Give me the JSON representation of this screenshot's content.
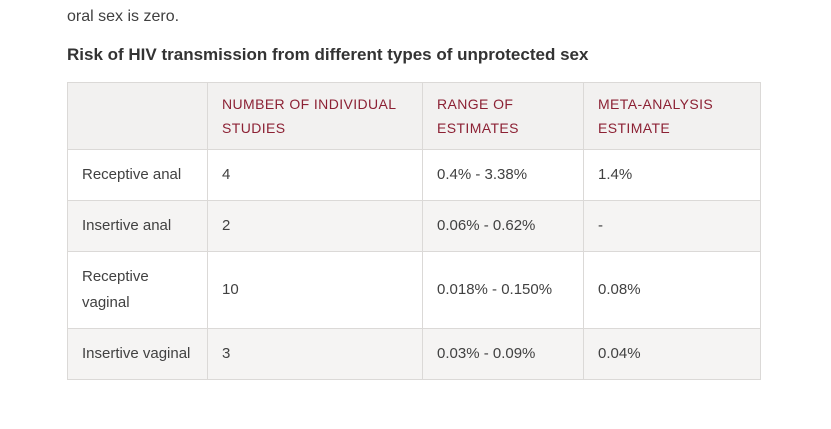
{
  "page": {
    "intro_text": "oral sex is zero.",
    "heading": "Risk of HIV transmission from different types of unprotected sex"
  },
  "table": {
    "columns": [
      "",
      "NUMBER OF INDIVIDUAL STUDIES",
      "RANGE OF ESTIMATES",
      "META-ANALYSIS ESTIMATE"
    ],
    "rows": [
      {
        "label": "Receptive anal",
        "studies": "4",
        "range": "0.4% - 3.38%",
        "meta": "1.4%"
      },
      {
        "label": "Insertive anal",
        "studies": "2",
        "range": "0.06% - 0.62%",
        "meta": "-"
      },
      {
        "label": "Receptive vaginal",
        "studies": "10",
        "range": "0.018% - 0.150%",
        "meta": "0.08%"
      },
      {
        "label": "Insertive vaginal",
        "studies": "3",
        "range": "0.03% - 0.09%",
        "meta": "0.04%"
      }
    ]
  },
  "chart_data": {
    "type": "table",
    "title": "Risk of HIV transmission from different types of unprotected sex",
    "columns": [
      "",
      "NUMBER OF INDIVIDUAL STUDIES",
      "RANGE OF ESTIMATES",
      "META-ANALYSIS ESTIMATE"
    ],
    "rows": [
      [
        "Receptive anal",
        "4",
        "0.4% - 3.38%",
        "1.4%"
      ],
      [
        "Insertive anal",
        "2",
        "0.06% - 0.62%",
        "-"
      ],
      [
        "Receptive vaginal",
        "10",
        "0.018% - 0.150%",
        "0.08%"
      ],
      [
        "Insertive vaginal",
        "3",
        "0.03% - 0.09%",
        "0.04%"
      ]
    ]
  },
  "colors": {
    "header_text": "#8c2134",
    "header_background": "#f2f1f0",
    "stripe_row_background": "#f5f4f3",
    "body_text": "#414141",
    "heading_text": "#333333",
    "border": "#dbd9d7"
  }
}
